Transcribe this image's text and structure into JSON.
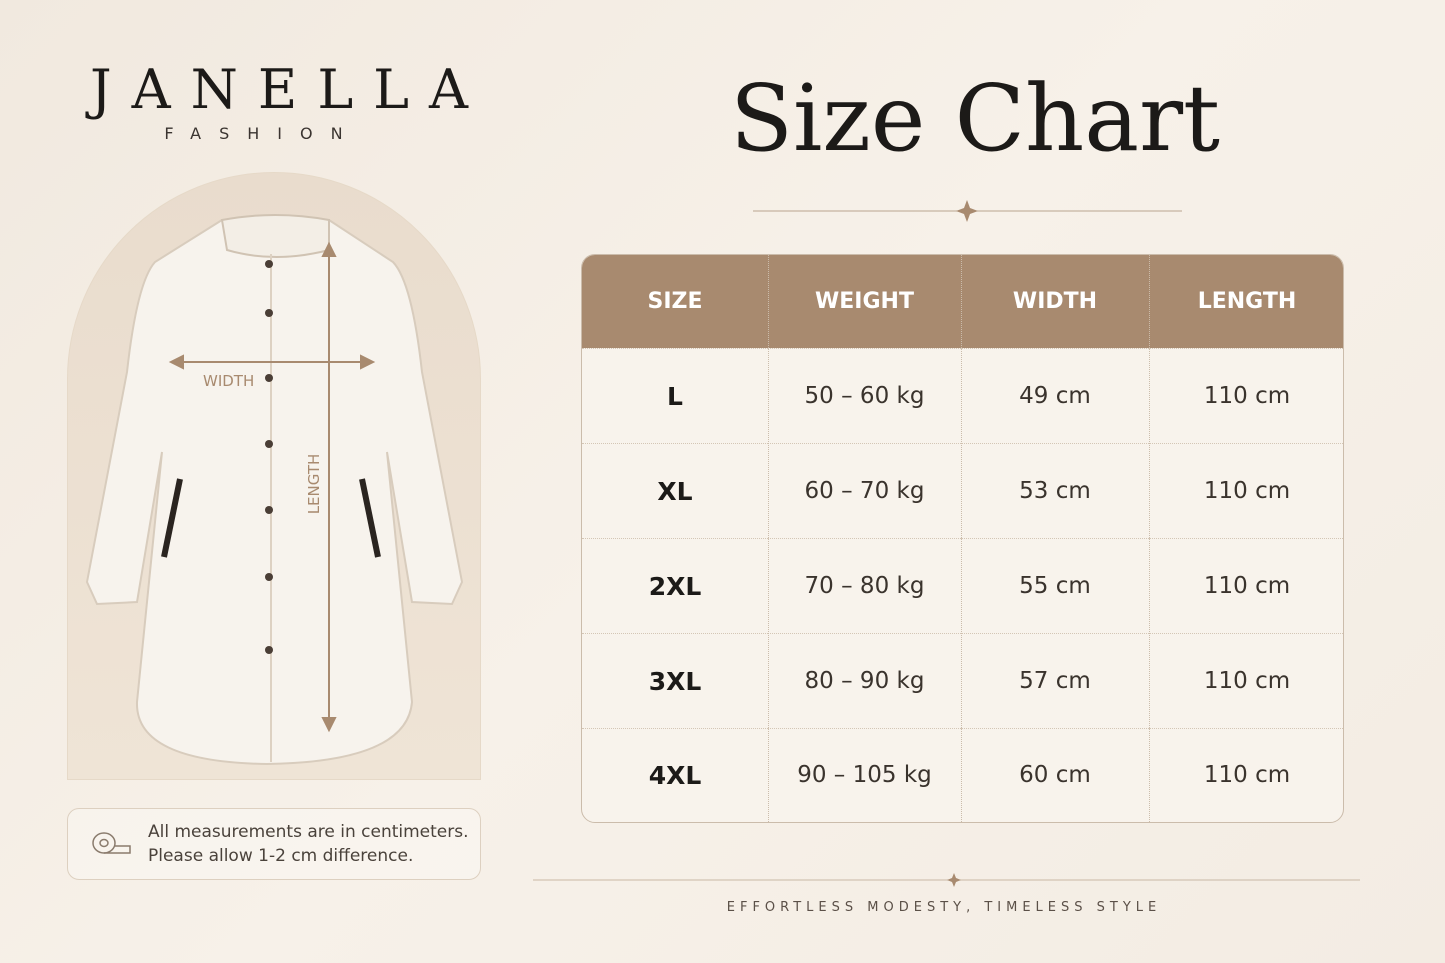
{
  "brand": {
    "name": "JANELLA",
    "subtitle": "FASHION"
  },
  "title": "Size Chart",
  "illustration": {
    "width_label": "WIDTH",
    "length_label": "LENGTH"
  },
  "note": {
    "lines": [
      "All measurements are in centimeters.",
      "Please allow 1-2 cm difference."
    ]
  },
  "table": {
    "headers": [
      "SIZE",
      "WEIGHT",
      "WIDTH",
      "LENGTH"
    ],
    "rows": [
      [
        "L",
        "50 – 60 kg",
        "49 cm",
        "110 cm"
      ],
      [
        "XL",
        "60 – 70 kg",
        "53 cm",
        "110 cm"
      ],
      [
        "2XL",
        "70 – 80 kg",
        "55 cm",
        "110 cm"
      ],
      [
        "3XL",
        "80 – 90 kg",
        "57 cm",
        "110 cm"
      ],
      [
        "4XL",
        "90 – 105 kg",
        "60 cm",
        "110 cm"
      ]
    ]
  },
  "tagline": "EFFORTLESS MODESTY, TIMELESS STYLE"
}
